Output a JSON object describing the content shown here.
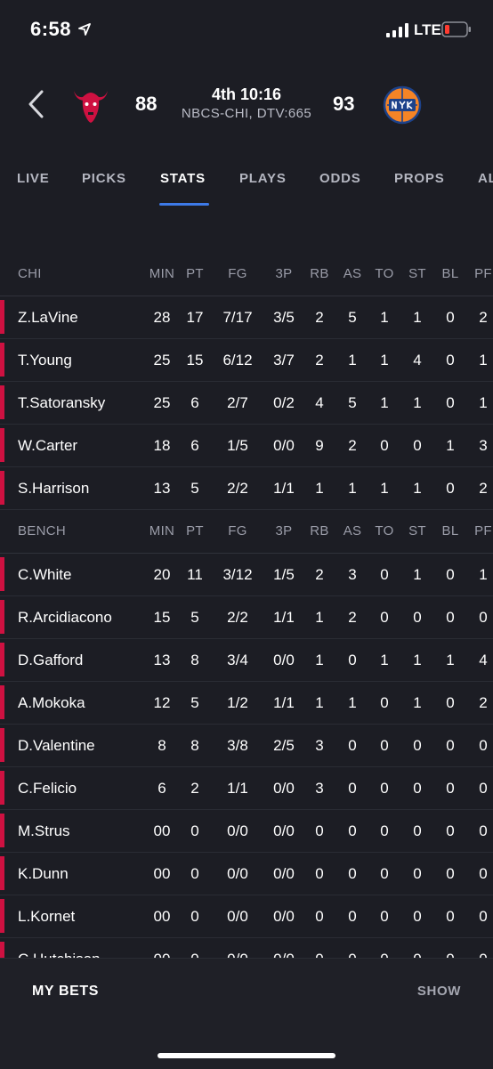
{
  "status_bar": {
    "time": "6:58",
    "network": "LTE"
  },
  "game": {
    "home_score": "88",
    "away_score": "93",
    "clock": "4th 10:16",
    "broadcast": "NBCS-CHI, DTV:665",
    "home_logo": "bulls-logo",
    "away_logo": "knicks-logo"
  },
  "tabs": [
    "LIVE",
    "PICKS",
    "STATS",
    "PLAYS",
    "ODDS",
    "PROPS",
    "AL"
  ],
  "active_tab": "STATS",
  "columns": [
    "MIN",
    "PT",
    "FG",
    "3P",
    "RB",
    "AS",
    "TO",
    "ST",
    "BL",
    "PF"
  ],
  "starters": {
    "label": "CHI",
    "players": [
      [
        "Z.LaVine",
        "28",
        "17",
        "7/17",
        "3/5",
        "2",
        "5",
        "1",
        "1",
        "0",
        "2"
      ],
      [
        "T.Young",
        "25",
        "15",
        "6/12",
        "3/7",
        "2",
        "1",
        "1",
        "4",
        "0",
        "1"
      ],
      [
        "T.Satoransky",
        "25",
        "6",
        "2/7",
        "0/2",
        "4",
        "5",
        "1",
        "1",
        "0",
        "1"
      ],
      [
        "W.Carter",
        "18",
        "6",
        "1/5",
        "0/0",
        "9",
        "2",
        "0",
        "0",
        "1",
        "3"
      ],
      [
        "S.Harrison",
        "13",
        "5",
        "2/2",
        "1/1",
        "1",
        "1",
        "1",
        "1",
        "0",
        "2"
      ]
    ]
  },
  "bench": {
    "label": "BENCH",
    "players": [
      [
        "C.White",
        "20",
        "11",
        "3/12",
        "1/5",
        "2",
        "3",
        "0",
        "1",
        "0",
        "1"
      ],
      [
        "R.Arcidiacono",
        "15",
        "5",
        "2/2",
        "1/1",
        "1",
        "2",
        "0",
        "0",
        "0",
        "0"
      ],
      [
        "D.Gafford",
        "13",
        "8",
        "3/4",
        "0/0",
        "1",
        "0",
        "1",
        "1",
        "1",
        "4"
      ],
      [
        "A.Mokoka",
        "12",
        "5",
        "1/2",
        "1/1",
        "1",
        "1",
        "0",
        "1",
        "0",
        "2"
      ],
      [
        "D.Valentine",
        "8",
        "8",
        "3/8",
        "2/5",
        "3",
        "0",
        "0",
        "0",
        "0",
        "0"
      ],
      [
        "C.Felicio",
        "6",
        "2",
        "1/1",
        "0/0",
        "3",
        "0",
        "0",
        "0",
        "0",
        "0"
      ],
      [
        "M.Strus",
        "00",
        "0",
        "0/0",
        "0/0",
        "0",
        "0",
        "0",
        "0",
        "0",
        "0"
      ],
      [
        "K.Dunn",
        "00",
        "0",
        "0/0",
        "0/0",
        "0",
        "0",
        "0",
        "0",
        "0",
        "0"
      ],
      [
        "L.Kornet",
        "00",
        "0",
        "0/0",
        "0/0",
        "0",
        "0",
        "0",
        "0",
        "0",
        "0"
      ],
      [
        "C.Hutchison",
        "00",
        "0",
        "0/0",
        "0/0",
        "0",
        "0",
        "0",
        "0",
        "0",
        "0"
      ]
    ]
  },
  "footer": {
    "my_bets": "MY BETS",
    "show": "SHOW"
  },
  "colors": {
    "background": "#1c1d24",
    "accent": "#3d7ae8",
    "team_bar": "#ce1141"
  }
}
